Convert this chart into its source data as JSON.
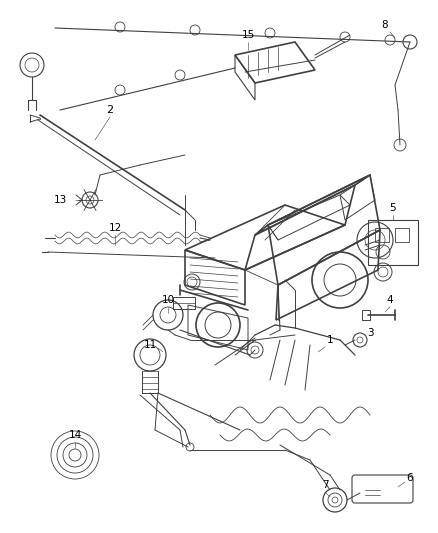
{
  "bg_color": "#ffffff",
  "line_color": "#404040",
  "fig_width": 4.38,
  "fig_height": 5.33,
  "dpi": 100
}
